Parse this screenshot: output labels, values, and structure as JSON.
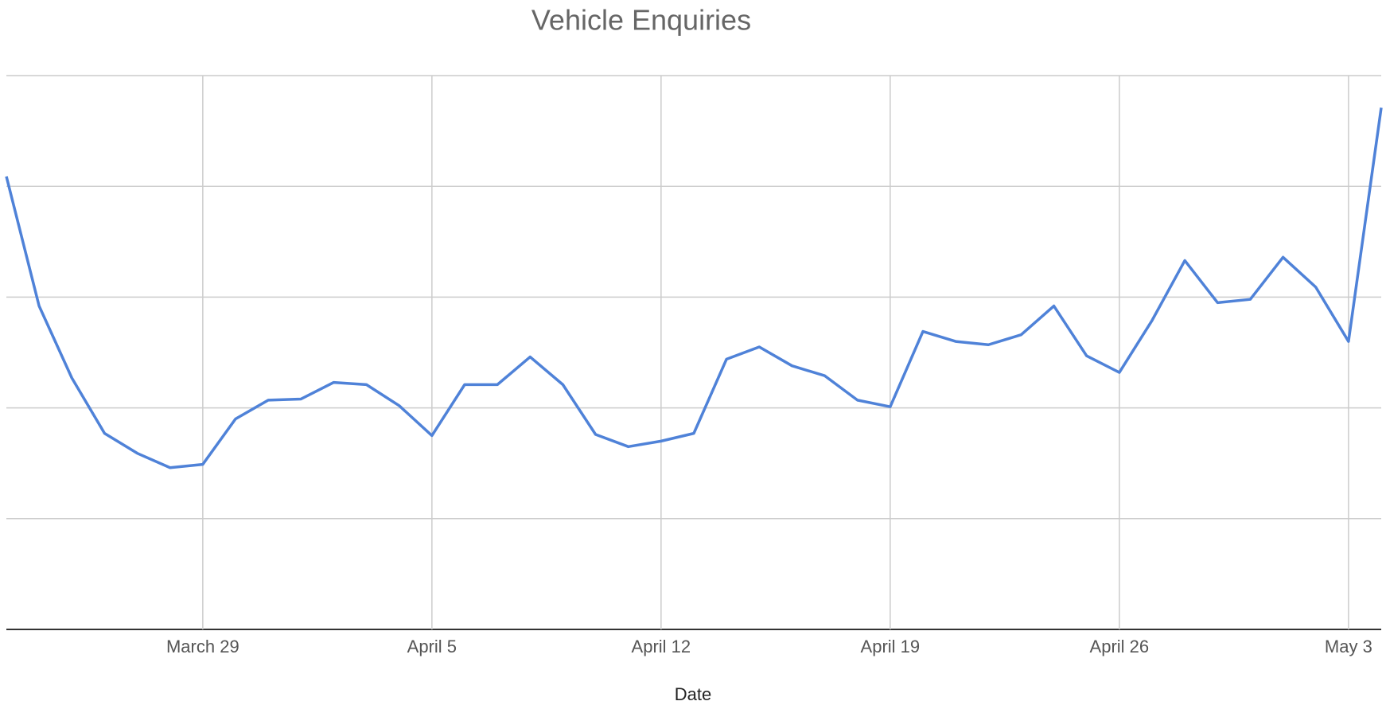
{
  "chart_data": {
    "type": "line",
    "title": "Vehicle Enquiries",
    "x_label": "Date",
    "x": [
      "March 23",
      "March 24",
      "March 25",
      "March 26",
      "March 27",
      "March 28",
      "March 29",
      "March 30",
      "March 31",
      "April 1",
      "April 2",
      "April 3",
      "April 4",
      "April 5",
      "April 6",
      "April 7",
      "April 8",
      "April 9",
      "April 10",
      "April 11",
      "April 12",
      "April 13",
      "April 14",
      "April 15",
      "April 16",
      "April 17",
      "April 18",
      "April 19",
      "April 20",
      "April 21",
      "April 22",
      "April 23",
      "April 24",
      "April 25",
      "April 26",
      "April 27",
      "April 28",
      "April 29",
      "April 30",
      "May 1",
      "May 2",
      "May 3",
      "May 4"
    ],
    "series": [
      {
        "name": "Enquiries",
        "color": "#4f82d8",
        "values": [
          4.09,
          2.92,
          2.27,
          1.77,
          1.59,
          1.46,
          1.49,
          1.9,
          2.07,
          2.08,
          2.23,
          2.21,
          2.02,
          1.75,
          2.21,
          2.21,
          2.46,
          2.21,
          1.76,
          1.65,
          1.7,
          1.77,
          2.44,
          2.55,
          2.38,
          2.29,
          2.07,
          2.01,
          2.69,
          2.6,
          2.57,
          2.66,
          2.92,
          2.47,
          2.32,
          2.79,
          3.33,
          2.95,
          2.98,
          3.36,
          3.09,
          2.6,
          4.71
        ]
      }
    ],
    "xticks": [
      "March 29",
      "April 5",
      "April 12",
      "April 19",
      "April 26",
      "May 3"
    ],
    "ylim": [
      0,
      5
    ],
    "yticks": [
      0,
      1,
      2,
      3,
      4,
      5
    ],
    "grid": true
  }
}
